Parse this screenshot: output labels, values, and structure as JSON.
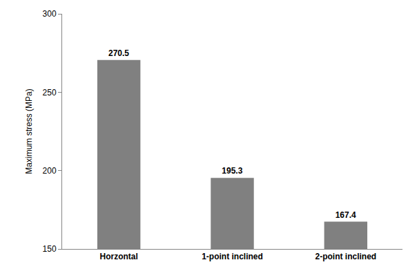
{
  "chart_data": {
    "type": "bar",
    "y_label": "Maximum stress (MPa)",
    "categories": [
      "Horzontal",
      "1-point inclined",
      "2-point inclined"
    ],
    "values": [
      270.5,
      195.3,
      167.4
    ],
    "color": "#808080",
    "ylim": [
      150,
      300
    ],
    "yticks": [
      150,
      200,
      250,
      300
    ],
    "grid": false,
    "data_labels": true
  }
}
